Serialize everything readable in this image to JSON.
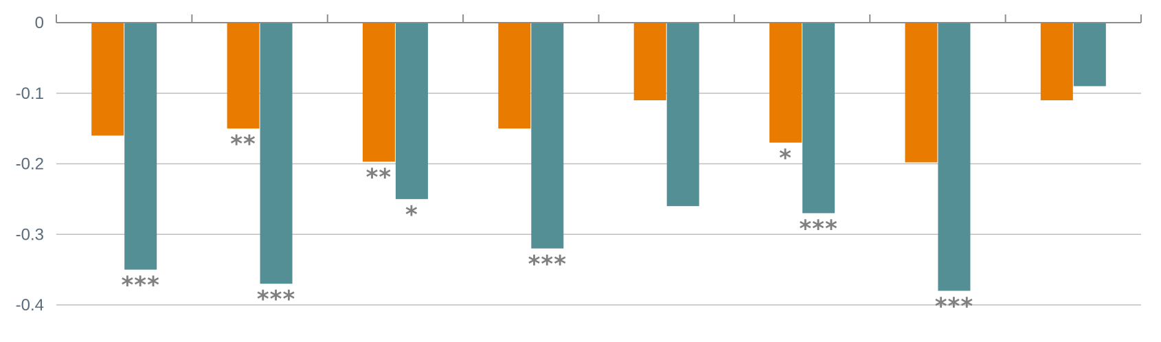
{
  "chart_data": {
    "type": "bar",
    "title": "",
    "xlabel": "",
    "ylabel": "",
    "ylim": [
      -0.4,
      0
    ],
    "yticks": [
      0,
      -0.1,
      -0.2,
      -0.3,
      -0.4
    ],
    "ytick_labels": [
      "0",
      "-0.1",
      "-0.2",
      "-0.3",
      "-0.4"
    ],
    "categories": [
      "",
      "",
      "",
      "",
      "",
      "",
      "",
      ""
    ],
    "grid": true,
    "legend": "none",
    "series": [
      {
        "color": "#e97c00",
        "values": [
          -0.16,
          -0.15,
          -0.197,
          -0.15,
          -0.11,
          -0.17,
          -0.198,
          -0.11
        ],
        "significance": [
          "",
          "**",
          "**",
          "",
          "",
          "*",
          "",
          ""
        ]
      },
      {
        "color": "#548f95",
        "values": [
          -0.35,
          -0.37,
          -0.25,
          -0.32,
          -0.26,
          -0.27,
          -0.38,
          -0.09
        ],
        "significance": [
          "***",
          "***",
          "*",
          "***",
          "",
          "***",
          "***",
          ""
        ]
      }
    ]
  }
}
